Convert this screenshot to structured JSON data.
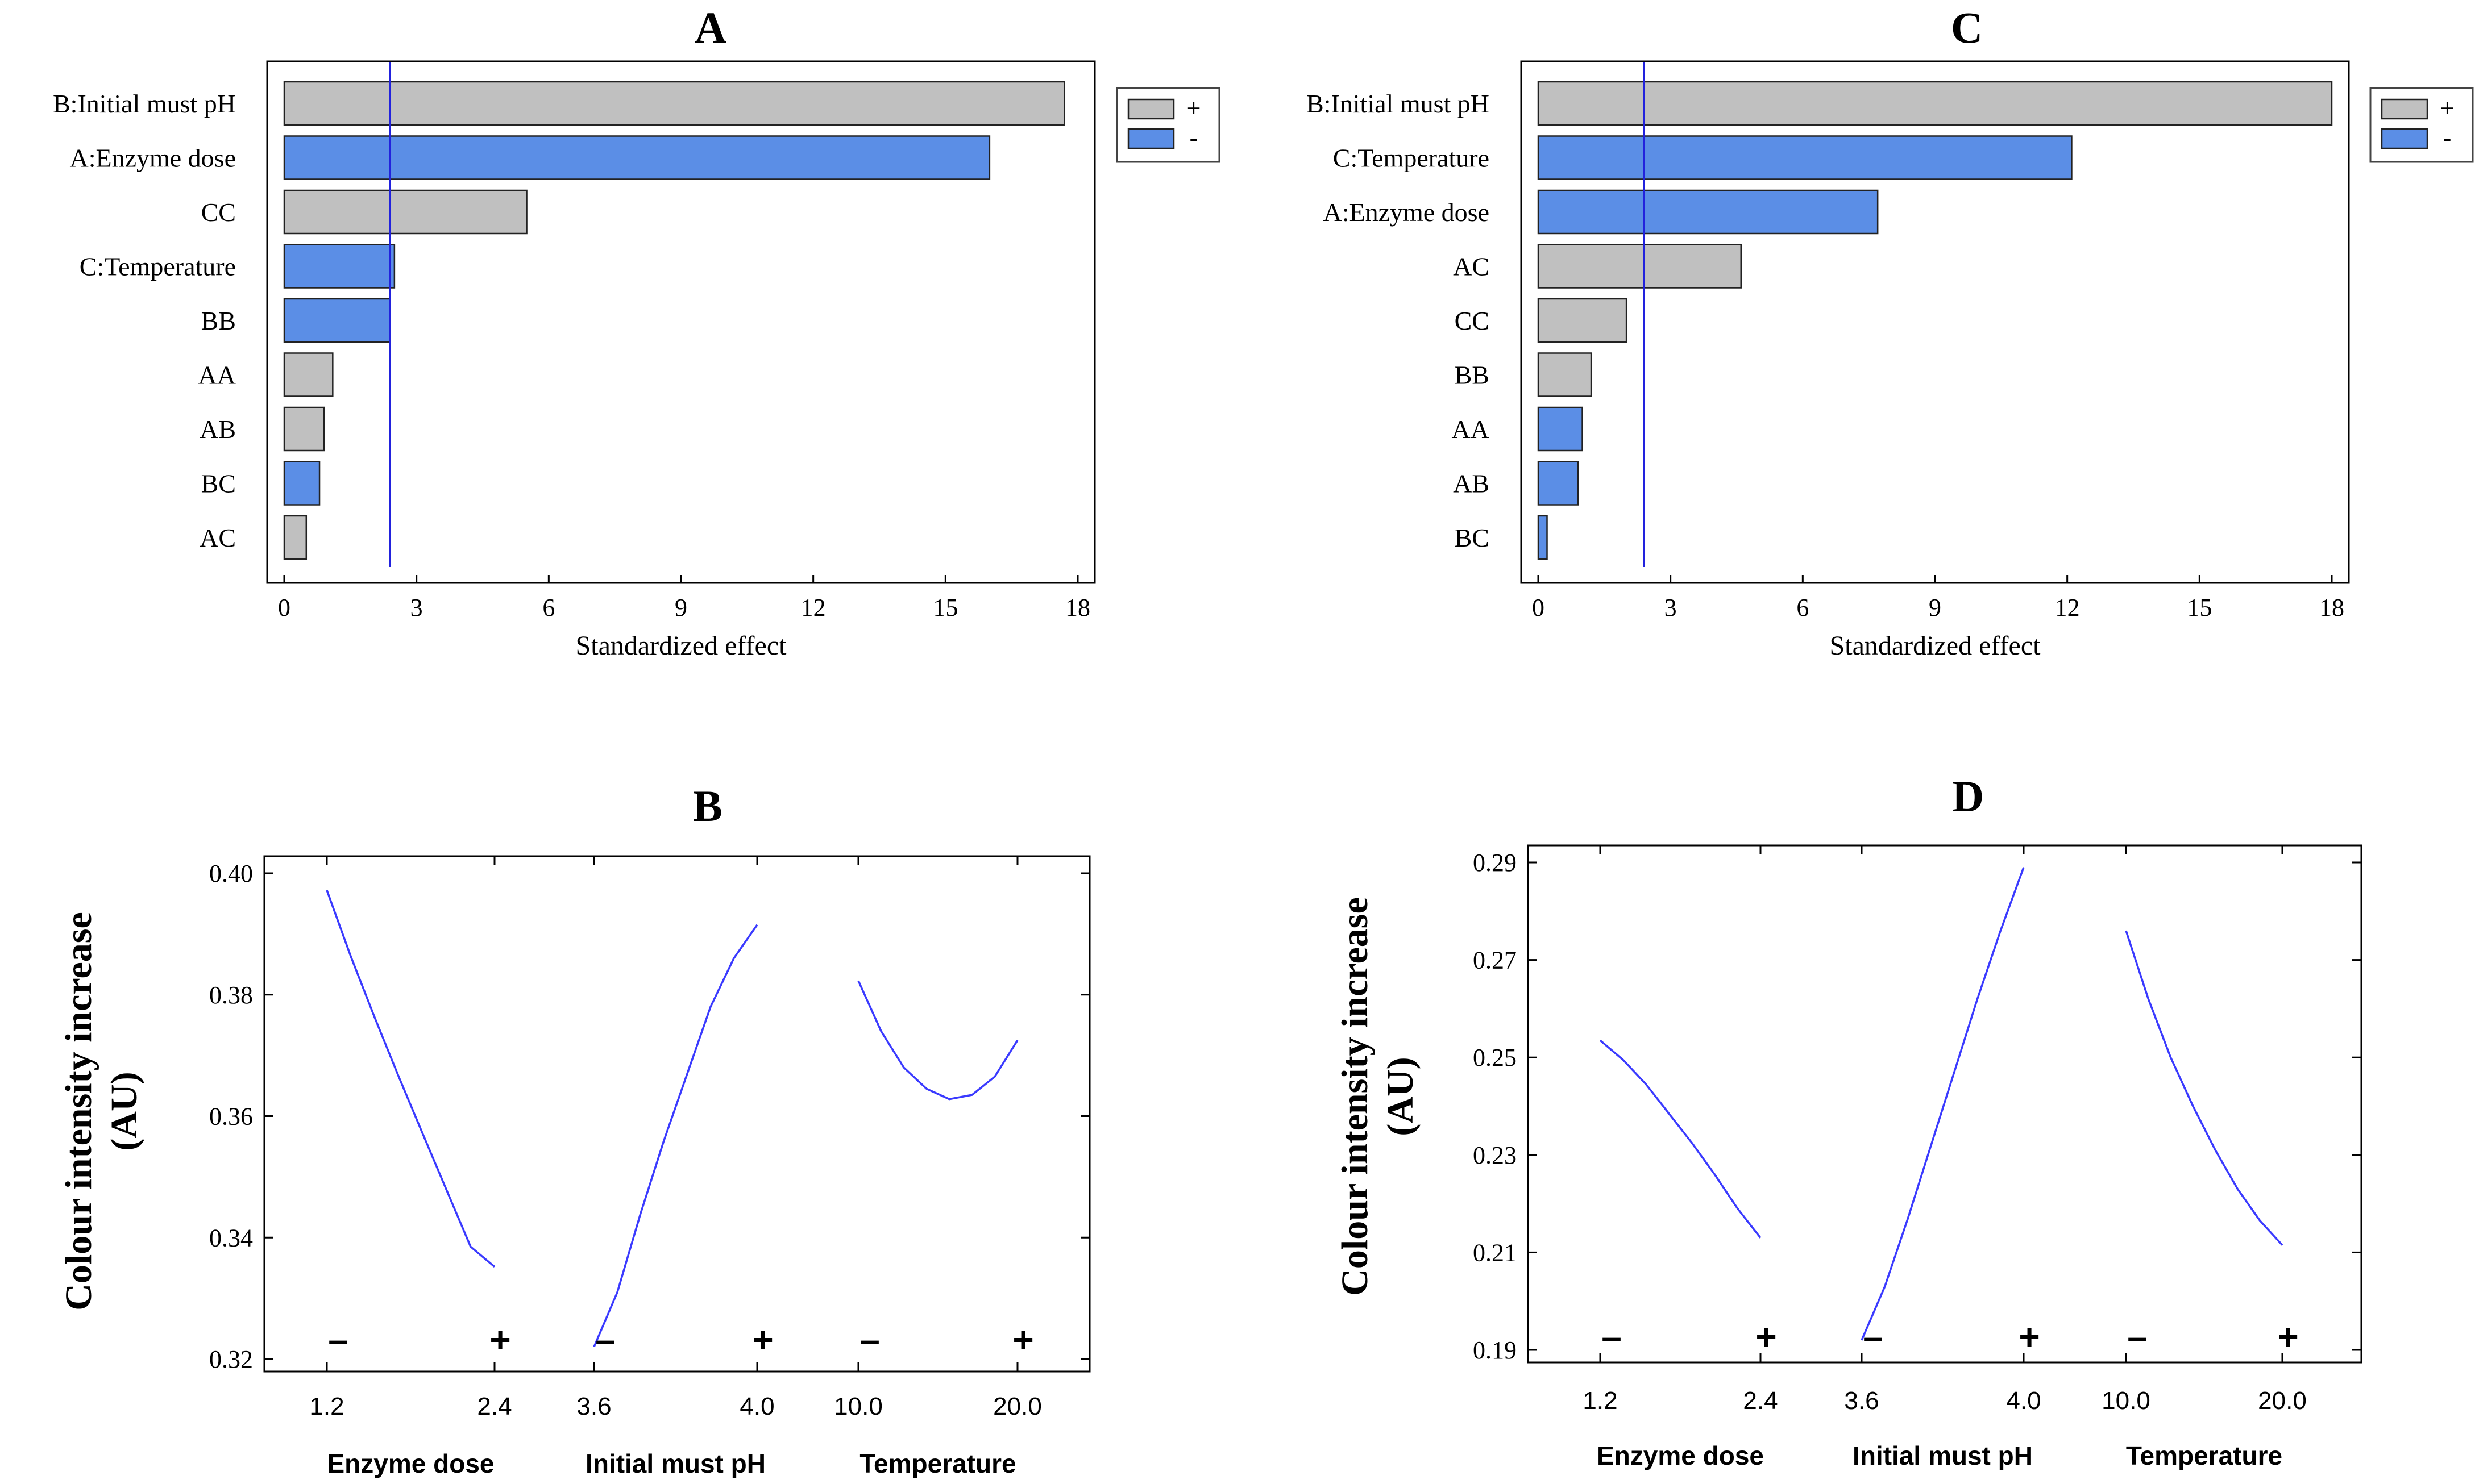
{
  "colors": {
    "positive": "#c0c0c0",
    "negative": "#5b8ee6",
    "curve": "#3a3aff",
    "refline": "#2222dd",
    "axis": "#000000"
  },
  "chart_data": [
    {
      "id": "A",
      "type": "bar",
      "orientation": "horizontal",
      "title": "A",
      "xlabel": "Standardized effect",
      "xlim": [
        0,
        18
      ],
      "xticks": [
        "0",
        "3",
        "6",
        "9",
        "12",
        "15",
        "18"
      ],
      "reference_line": 2.4,
      "legend": {
        "placement": "top-right",
        "entries": [
          {
            "label": "+",
            "sign": "positive"
          },
          {
            "label": "-",
            "sign": "negative"
          }
        ]
      },
      "categories": [
        "B:Initial must pH",
        "A:Enzyme dose",
        "CC",
        "C:Temperature",
        "BB",
        "AA",
        "AB",
        "BC",
        "AC"
      ],
      "values": [
        17.7,
        16.0,
        5.5,
        2.5,
        2.4,
        1.1,
        0.9,
        0.8,
        0.5
      ],
      "signs": [
        "positive",
        "negative",
        "positive",
        "negative",
        "negative",
        "positive",
        "positive",
        "negative",
        "positive"
      ]
    },
    {
      "id": "C",
      "type": "bar",
      "orientation": "horizontal",
      "title": "C",
      "xlabel": "Standardized effect",
      "xlim": [
        0,
        18
      ],
      "xticks": [
        "0",
        "3",
        "6",
        "9",
        "12",
        "15",
        "18"
      ],
      "reference_line": 2.4,
      "legend": {
        "placement": "top-right",
        "entries": [
          {
            "label": "+",
            "sign": "positive"
          },
          {
            "label": "-",
            "sign": "negative"
          }
        ]
      },
      "categories": [
        "B:Initial must pH",
        "C:Temperature",
        "A:Enzyme dose",
        "AC",
        "CC",
        "BB",
        "AA",
        "AB",
        "BC"
      ],
      "values": [
        18.0,
        12.1,
        7.7,
        4.6,
        2.0,
        1.2,
        1.0,
        0.9,
        0.2
      ],
      "signs": [
        "positive",
        "negative",
        "negative",
        "positive",
        "positive",
        "positive",
        "negative",
        "negative",
        "negative"
      ]
    },
    {
      "id": "B",
      "type": "line",
      "title": "B",
      "ylabel": "Colour intensity increase (AU)",
      "ylabel_lines": [
        "Colour intensity increase",
        "(AU)"
      ],
      "ylim": [
        0.32,
        0.4
      ],
      "yticks": [
        "0.40",
        "0.38",
        "0.36",
        "0.34",
        "0.32"
      ],
      "factors": [
        {
          "name": "Enzyme dose",
          "low_label": "1.2",
          "high_label": "2.4",
          "low_sign": "–",
          "high_sign": "+",
          "y": [
            0.3972,
            0.3863,
            0.3762,
            0.3665,
            0.3571,
            0.3478,
            0.3385,
            0.3352
          ]
        },
        {
          "name": "Initial must pH",
          "low_label": "3.6",
          "high_label": "4.0",
          "low_sign": "–",
          "high_sign": "+",
          "y": [
            0.322,
            0.331,
            0.344,
            0.356,
            0.367,
            0.378,
            0.386,
            0.3915
          ]
        },
        {
          "name": "Temperature",
          "low_label": "10.0",
          "high_label": "20.0",
          "low_sign": "–",
          "high_sign": "+",
          "y": [
            0.3823,
            0.374,
            0.368,
            0.3645,
            0.3628,
            0.3635,
            0.3665,
            0.3725
          ]
        }
      ]
    },
    {
      "id": "D",
      "type": "line",
      "title": "D",
      "ylabel": "Colour intensity increase (AU)",
      "ylabel_lines": [
        "Colour intensity increase",
        "(AU)"
      ],
      "ylim": [
        0.19,
        0.29
      ],
      "yticks": [
        "0.29",
        "0.27",
        "0.25",
        "0.23",
        "0.21",
        "0.19"
      ],
      "factors": [
        {
          "name": "Enzyme dose",
          "low_label": "1.2",
          "high_label": "2.4",
          "low_sign": "–",
          "high_sign": "+",
          "y": [
            0.2535,
            0.2495,
            0.2445,
            0.2385,
            0.2325,
            0.226,
            0.219,
            0.213
          ]
        },
        {
          "name": "Initial must pH",
          "low_label": "3.6",
          "high_label": "4.0",
          "low_sign": "–",
          "high_sign": "+",
          "y": [
            0.192,
            0.203,
            0.217,
            0.232,
            0.247,
            0.262,
            0.276,
            0.289
          ]
        },
        {
          "name": "Temperature",
          "low_label": "10.0",
          "high_label": "20.0",
          "low_sign": "–",
          "high_sign": "+",
          "y": [
            0.276,
            0.262,
            0.25,
            0.24,
            0.231,
            0.223,
            0.2165,
            0.2115
          ]
        }
      ]
    }
  ]
}
